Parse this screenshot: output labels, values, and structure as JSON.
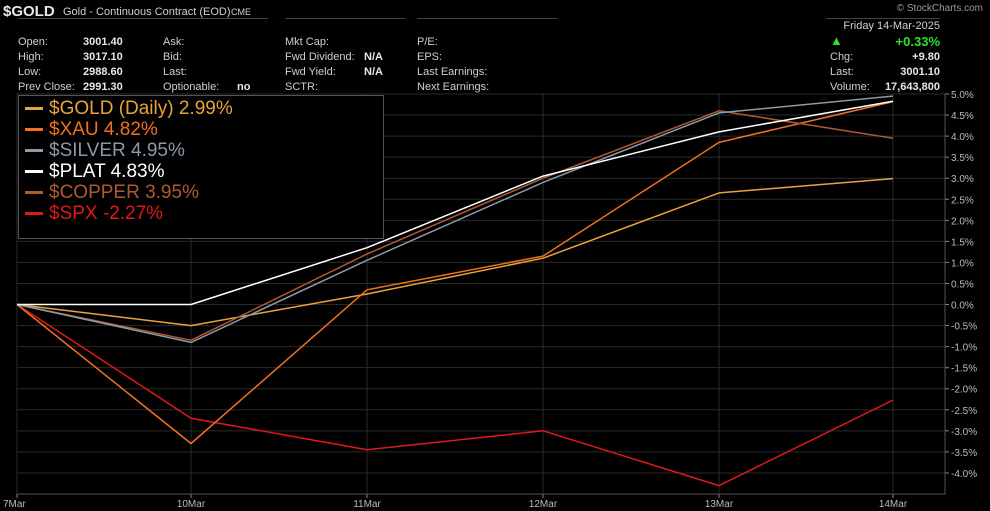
{
  "header": {
    "symbol": "$GOLD",
    "description": "Gold - Continuous Contract (EOD)",
    "exchange": "CME",
    "credit": "© StockCharts.com"
  },
  "quote": {
    "col1": [
      {
        "label": "Open:",
        "value": "3001.40"
      },
      {
        "label": "High:",
        "value": "3017.10"
      },
      {
        "label": "Low:",
        "value": "2988.60"
      },
      {
        "label": "Prev Close:",
        "value": "2991.30"
      }
    ],
    "col2": [
      {
        "label": "Ask:",
        "value": ""
      },
      {
        "label": "Bid:",
        "value": ""
      },
      {
        "label": "Last:",
        "value": ""
      },
      {
        "label": "Optionable:",
        "value": "no"
      }
    ],
    "col3": [
      {
        "label": "Mkt Cap:",
        "value": ""
      },
      {
        "label": "Fwd Dividend:",
        "value": "N/A"
      },
      {
        "label": "Fwd Yield:",
        "value": "N/A"
      },
      {
        "label": "SCTR:",
        "value": ""
      }
    ],
    "col4": [
      {
        "label": "P/E:",
        "value": ""
      },
      {
        "label": "EPS:",
        "value": ""
      },
      {
        "label": "Last Earnings:",
        "value": ""
      },
      {
        "label": "Next Earnings:",
        "value": ""
      }
    ],
    "right": {
      "date": "Friday 14-Mar-2025",
      "change_pct": "+0.33%",
      "chg_label": "Chg:",
      "chg_value": "+9.80",
      "last_label": "Last:",
      "last_value": "3001.10",
      "volume_label": "Volume:",
      "volume_value": "17,643,800",
      "up_color": "#2ee02e"
    }
  },
  "legend": [
    {
      "text": "$GOLD (Daily) 2.99%",
      "color": "#e8a33c"
    },
    {
      "text": "$XAU 4.82%",
      "color": "#f07020"
    },
    {
      "text": "$SILVER 4.95%",
      "color": "#8a9aa8"
    },
    {
      "text": "$PLAT 4.83%",
      "color": "#ffffff"
    },
    {
      "text": "$COPPER 3.95%",
      "color": "#b05a30"
    },
    {
      "text": "$SPX -2.27%",
      "color": "#e01818"
    }
  ],
  "chart_data": {
    "type": "line",
    "categories": [
      "7Mar",
      "10Mar",
      "11Mar",
      "12Mar",
      "13Mar",
      "14Mar"
    ],
    "ylim": [
      -4.5,
      5.0
    ],
    "yticks": [
      "5.0%",
      "4.5%",
      "4.0%",
      "3.5%",
      "3.0%",
      "2.5%",
      "2.0%",
      "1.5%",
      "1.0%",
      "0.5%",
      "0.0%",
      "-0.5%",
      "-1.0%",
      "-1.5%",
      "-2.0%",
      "-2.5%",
      "-3.0%",
      "-3.5%",
      "-4.0%"
    ],
    "ytick_values": [
      5.0,
      4.5,
      4.0,
      3.5,
      3.0,
      2.5,
      2.0,
      1.5,
      1.0,
      0.5,
      0.0,
      -0.5,
      -1.0,
      -1.5,
      -2.0,
      -2.5,
      -3.0,
      -3.5,
      -4.0
    ],
    "grid": true,
    "legend_position": "top-left",
    "series": [
      {
        "name": "$GOLD (Daily)",
        "color": "#e8a33c",
        "values": [
          0.0,
          -0.5,
          0.25,
          1.1,
          2.65,
          2.99
        ]
      },
      {
        "name": "$XAU",
        "color": "#f07020",
        "values": [
          0.0,
          -3.3,
          0.35,
          1.15,
          3.85,
          4.82
        ]
      },
      {
        "name": "$SILVER",
        "color": "#8a9aa8",
        "values": [
          0.0,
          -0.9,
          1.05,
          2.9,
          4.55,
          4.95
        ]
      },
      {
        "name": "$PLAT",
        "color": "#ffffff",
        "values": [
          0.0,
          0.0,
          1.35,
          3.05,
          4.1,
          4.83
        ]
      },
      {
        "name": "$COPPER",
        "color": "#b05a30",
        "values": [
          0.0,
          -0.85,
          1.2,
          3.0,
          4.6,
          3.95
        ]
      },
      {
        "name": "$SPX",
        "color": "#e01818",
        "values": [
          0.0,
          -2.7,
          -3.45,
          -3.0,
          -4.3,
          -2.27
        ]
      }
    ]
  }
}
